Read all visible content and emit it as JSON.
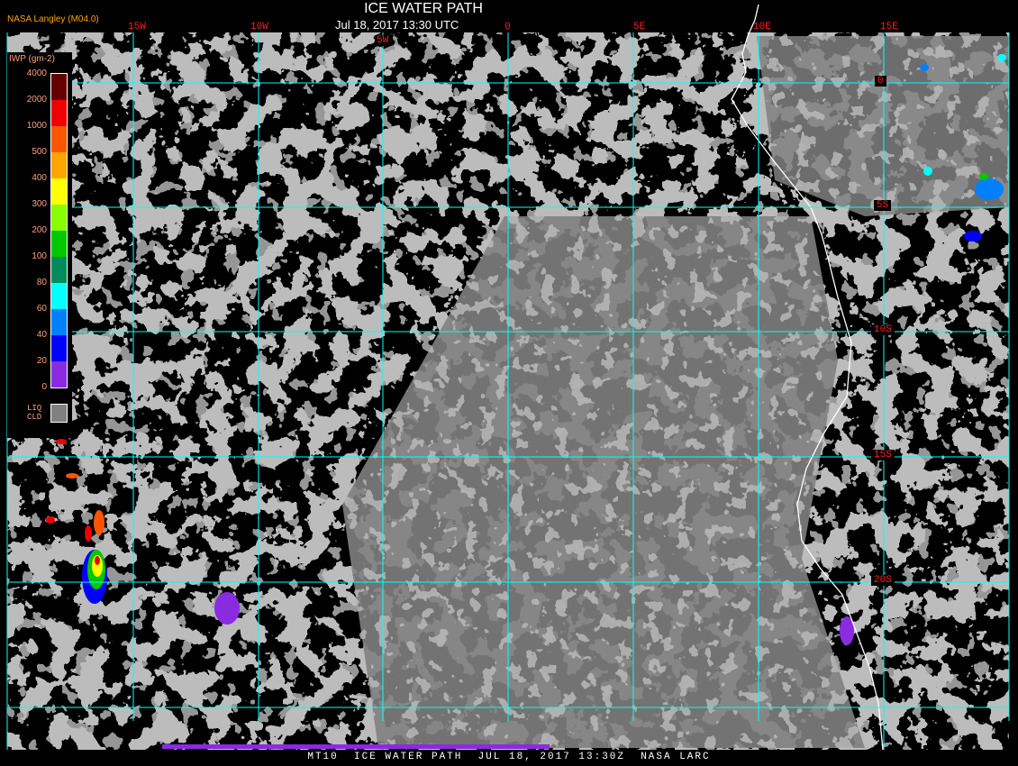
{
  "header": {
    "title": "ICE WATER PATH",
    "subtitle": "Jul 18, 2017 13:30 UTC",
    "credit": "NASA Langley (M04.0)"
  },
  "longitude_labels": [
    "15W",
    "10W",
    "5W",
    "0",
    "5E",
    "10E",
    "15E"
  ],
  "latitude_labels": [
    "0",
    "5S",
    "10S",
    "15S",
    "20S"
  ],
  "legend": {
    "title": "IWP (gm-2)",
    "ticks": [
      "4000",
      "2000",
      "1000",
      "500",
      "400",
      "300",
      "200",
      "100",
      "80",
      "60",
      "40",
      "20",
      "0"
    ],
    "colors": [
      "#660000",
      "#ee0000",
      "#ff5500",
      "#ffa500",
      "#ffff00",
      "#88ff00",
      "#00c800",
      "#008c5a",
      "#00ffff",
      "#0080ff",
      "#0000ff",
      "#8a2be2"
    ],
    "liquid_cloud_label_1": "LIQ",
    "liquid_cloud_label_2": "CLD",
    "liquid_cloud_color": "#808080"
  },
  "colors": {
    "gridlines": "#00ffff",
    "coastline": "#ffffff",
    "labels": "#ff2020",
    "background": "#000000"
  },
  "footer": "MT10  ICE WATER PATH  JUL 18, 2017 13:30Z  NASA LARC"
}
